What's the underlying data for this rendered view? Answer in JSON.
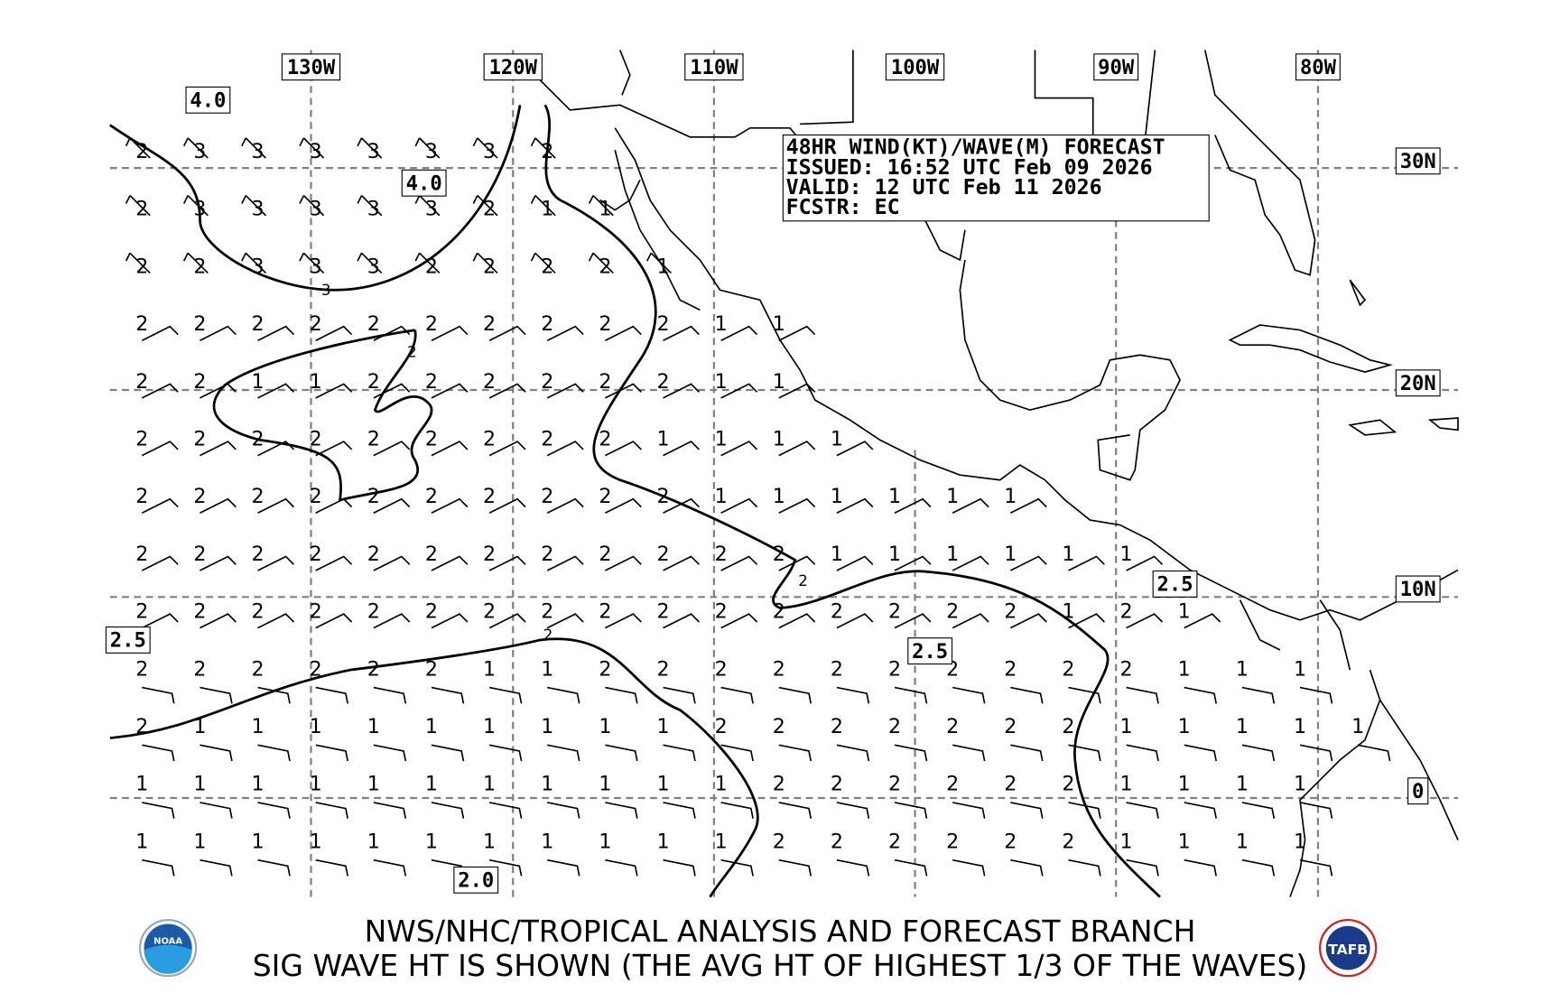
{
  "header": {
    "lines": [
      "48HR WIND(KT)/WAVE(M) FORECAST",
      "ISSUED: 16:52 UTC Feb 09 2026",
      "VALID: 12 UTC Feb 11 2026",
      "FCSTR: EC"
    ]
  },
  "longitude_labels": [
    "130W",
    "120W",
    "110W",
    "100W",
    "90W",
    "80W"
  ],
  "latitude_labels": [
    "30N",
    "20N",
    "10N"
  ],
  "contour_labels": [
    "4.0",
    "4.0",
    "2.5",
    "2.5",
    "2.5",
    "2.0",
    "0",
    "3",
    "2",
    "2",
    "2"
  ],
  "wave_heights": [
    [
      2,
      3,
      3,
      3,
      3,
      3,
      3,
      2
    ],
    [
      2,
      3,
      3,
      3,
      3,
      3,
      2,
      1,
      1
    ],
    [
      2,
      2,
      3,
      3,
      3,
      2,
      2,
      2,
      2,
      1
    ],
    [
      2,
      2,
      2,
      2,
      2,
      2,
      2,
      2,
      2,
      2,
      1,
      1
    ],
    [
      2,
      2,
      1,
      1,
      2,
      2,
      2,
      2,
      2,
      2,
      1,
      1
    ],
    [
      2,
      2,
      2,
      2,
      2,
      2,
      2,
      2,
      2,
      1,
      1,
      1,
      1
    ],
    [
      2,
      2,
      2,
      2,
      2,
      2,
      2,
      2,
      2,
      2,
      1,
      1,
      1,
      1,
      1,
      1
    ],
    [
      2,
      2,
      2,
      2,
      2,
      2,
      2,
      2,
      2,
      2,
      2,
      2,
      1,
      1,
      1,
      1,
      1,
      1
    ],
    [
      2,
      2,
      2,
      2,
      2,
      2,
      2,
      2,
      2,
      2,
      2,
      2,
      2,
      2,
      2,
      2,
      1,
      2,
      1
    ],
    [
      2,
      2,
      2,
      2,
      2,
      2,
      1,
      1,
      2,
      2,
      2,
      2,
      2,
      2,
      2,
      2,
      2,
      2,
      1,
      1,
      1
    ],
    [
      2,
      1,
      1,
      1,
      1,
      1,
      1,
      1,
      1,
      1,
      2,
      2,
      2,
      2,
      2,
      2,
      2,
      1,
      1,
      1,
      1,
      1
    ],
    [
      1,
      1,
      1,
      1,
      1,
      1,
      1,
      1,
      1,
      1,
      1,
      2,
      2,
      2,
      2,
      2,
      2,
      1,
      1,
      1,
      1
    ],
    [
      1,
      1,
      1,
      1,
      1,
      1,
      1,
      1,
      1,
      1,
      1,
      2,
      2,
      2,
      2,
      2,
      2,
      1,
      1,
      1,
      1
    ]
  ],
  "footer": {
    "line1": "NWS/NHC/TROPICAL ANALYSIS AND FORECAST BRANCH",
    "line2": "SIG WAVE HT IS SHOWN (THE AVG HT OF HIGHEST 1/3 OF THE WAVES)"
  },
  "logos": {
    "left": "NOAA",
    "right": "TAFB"
  },
  "colors": {
    "grid": "#808080",
    "lines": "#000000",
    "noaa_blue": "#1a5aa8",
    "tafb_red": "#d02020"
  }
}
